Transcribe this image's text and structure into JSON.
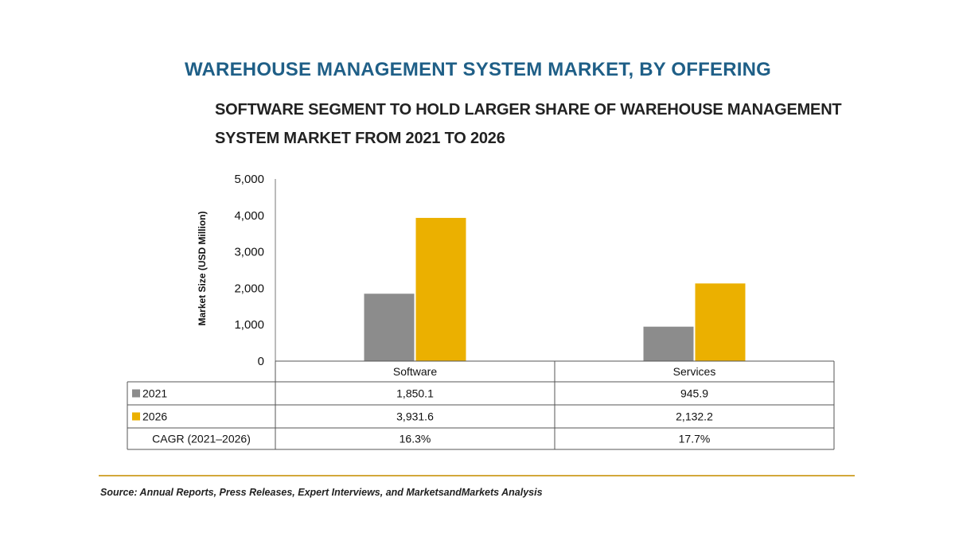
{
  "header": {
    "title": "WAREHOUSE MANAGEMENT SYSTEM MARKET, BY OFFERING",
    "subtitle": "SOFTWARE SEGMENT TO HOLD LARGER SHARE OF WAREHOUSE MANAGEMENT SYSTEM MARKET FROM 2021 TO 2026"
  },
  "source": "Source: Annual Reports, Press Releases, Expert Interviews, and MarketsandMarkets Analysis",
  "colors": {
    "title": "#1f5f87",
    "series_2021": "#8c8c8c",
    "series_2026": "#ebb000",
    "rule": "#d3a83a"
  },
  "chart_data": {
    "type": "bar",
    "categories": [
      "Software",
      "Services"
    ],
    "series": [
      {
        "name": "2021",
        "values": [
          1850.1,
          945.9
        ],
        "labels": [
          "1,850.1",
          "945.9"
        ]
      },
      {
        "name": "2026",
        "values": [
          3931.6,
          2132.2
        ],
        "labels": [
          "3,931.6",
          "2,132.2"
        ]
      }
    ],
    "table_rows": [
      {
        "label": "CAGR (2021–2026)",
        "values": [
          "16.3%",
          "17.7%"
        ]
      }
    ],
    "ylabel": "Market Size (USD Million)",
    "ylim": [
      0,
      5000
    ],
    "yticks": [
      0,
      1000,
      2000,
      3000,
      4000,
      5000
    ],
    "ytick_labels": [
      "0",
      "1,000",
      "2,000",
      "3,000",
      "4,000",
      "5,000"
    ],
    "grid": false,
    "legend": "in data table"
  }
}
